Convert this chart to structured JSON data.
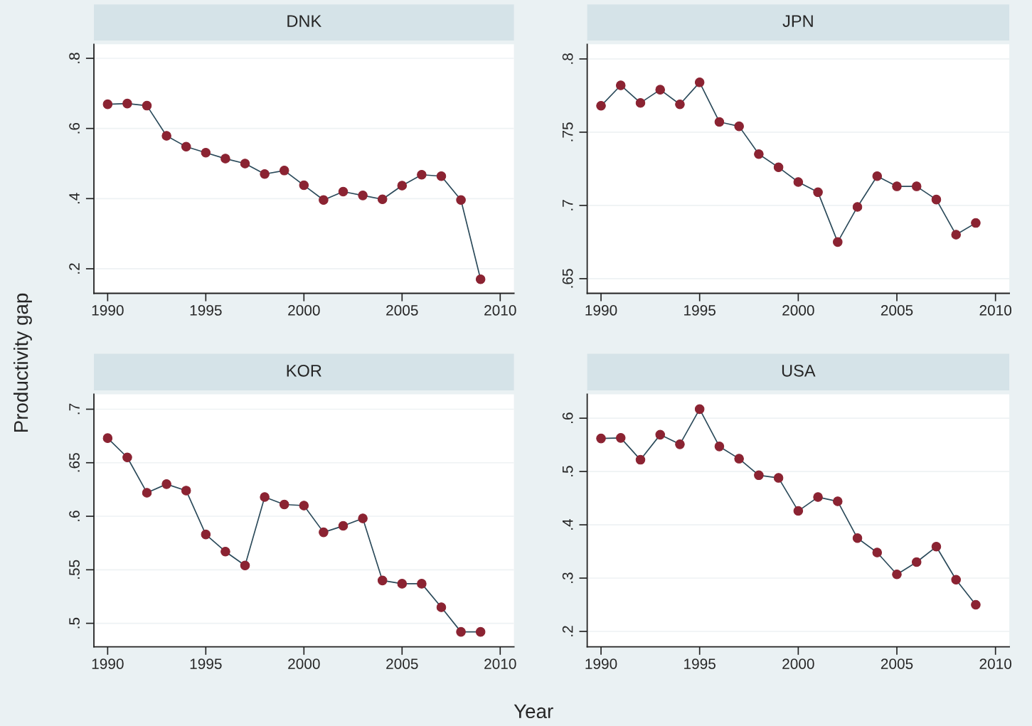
{
  "chart_data": [
    {
      "type": "line",
      "title": "DNK",
      "ylabel": "Productivity gap",
      "x": [
        1990,
        1991,
        1992,
        1993,
        1994,
        1995,
        1996,
        1997,
        1998,
        1999,
        2000,
        2001,
        2002,
        2003,
        2004,
        2005,
        2006,
        2007,
        2008,
        2009
      ],
      "series": [
        {
          "color": "#8b2332",
          "values": [
            0.669,
            0.671,
            0.665,
            0.579,
            0.548,
            0.531,
            0.514,
            0.5,
            0.47,
            0.48,
            0.438,
            0.396,
            0.42,
            0.409,
            0.398,
            0.437,
            0.468,
            0.464,
            0.396,
            0.17
          ]
        }
      ],
      "xlim": [
        1989.3,
        2010.7
      ],
      "ylim": [
        0.13,
        0.84
      ],
      "xticks": [
        1990,
        1995,
        2000,
        2005,
        2010
      ],
      "yticks": [
        {
          "value": 0.2,
          "label": ".2"
        },
        {
          "value": 0.4,
          "label": ".4"
        },
        {
          "value": 0.6,
          "label": ".6"
        },
        {
          "value": 0.8,
          "label": ".8"
        }
      ],
      "grid": "y",
      "marker": "circle"
    },
    {
      "type": "line",
      "title": "JPN",
      "x": [
        1990,
        1991,
        1992,
        1993,
        1994,
        1995,
        1996,
        1997,
        1998,
        1999,
        2000,
        2001,
        2002,
        2003,
        2004,
        2005,
        2006,
        2007,
        2008,
        2009
      ],
      "series": [
        {
          "color": "#8b2332",
          "values": [
            0.768,
            0.782,
            0.77,
            0.779,
            0.769,
            0.784,
            0.757,
            0.754,
            0.735,
            0.726,
            0.716,
            0.709,
            0.675,
            0.699,
            0.72,
            0.713,
            0.713,
            0.704,
            0.68,
            0.688
          ]
        }
      ],
      "xlim": [
        1989.3,
        2010.7
      ],
      "ylim": [
        0.64,
        0.81
      ],
      "xticks": [
        1990,
        1995,
        2000,
        2005,
        2010
      ],
      "yticks": [
        {
          "value": 0.65,
          "label": ".65"
        },
        {
          "value": 0.7,
          "label": ".7"
        },
        {
          "value": 0.75,
          "label": ".75"
        },
        {
          "value": 0.8,
          "label": ".8"
        }
      ],
      "grid": "y",
      "marker": "circle"
    },
    {
      "type": "line",
      "title": "KOR",
      "xlabel": "Year",
      "x": [
        1990,
        1991,
        1992,
        1993,
        1994,
        1995,
        1996,
        1997,
        1998,
        1999,
        2000,
        2001,
        2002,
        2003,
        2004,
        2005,
        2006,
        2007,
        2008,
        2009
      ],
      "series": [
        {
          "color": "#8b2332",
          "values": [
            0.673,
            0.655,
            0.622,
            0.63,
            0.624,
            0.583,
            0.567,
            0.554,
            0.618,
            0.611,
            0.61,
            0.585,
            0.591,
            0.598,
            0.54,
            0.537,
            0.537,
            0.515,
            0.492,
            0.492
          ]
        }
      ],
      "xlim": [
        1989.3,
        2010.7
      ],
      "ylim": [
        0.478,
        0.714
      ],
      "xticks": [
        1990,
        1995,
        2000,
        2005,
        2010
      ],
      "yticks": [
        {
          "value": 0.5,
          "label": ".5"
        },
        {
          "value": 0.55,
          "label": ".55"
        },
        {
          "value": 0.6,
          "label": ".6"
        },
        {
          "value": 0.65,
          "label": ".65"
        },
        {
          "value": 0.7,
          "label": ".7"
        }
      ],
      "grid": "y",
      "marker": "circle"
    },
    {
      "type": "line",
      "title": "USA",
      "x": [
        1990,
        1991,
        1992,
        1993,
        1994,
        1995,
        1996,
        1997,
        1998,
        1999,
        2000,
        2001,
        2002,
        2003,
        2004,
        2005,
        2006,
        2007,
        2008,
        2009
      ],
      "series": [
        {
          "color": "#8b2332",
          "values": [
            0.562,
            0.563,
            0.522,
            0.569,
            0.551,
            0.617,
            0.547,
            0.524,
            0.493,
            0.488,
            0.426,
            0.452,
            0.444,
            0.375,
            0.348,
            0.307,
            0.33,
            0.359,
            0.297,
            0.25
          ]
        }
      ],
      "xlim": [
        1989.3,
        2010.7
      ],
      "ylim": [
        0.171,
        0.645
      ],
      "xticks": [
        1990,
        1995,
        2000,
        2005,
        2010
      ],
      "yticks": [
        {
          "value": 0.2,
          "label": ".2"
        },
        {
          "value": 0.3,
          "label": ".3"
        },
        {
          "value": 0.4,
          "label": ".4"
        },
        {
          "value": 0.5,
          "label": ".5"
        },
        {
          "value": 0.6,
          "label": ".6"
        }
      ],
      "grid": "y",
      "marker": "circle"
    }
  ]
}
